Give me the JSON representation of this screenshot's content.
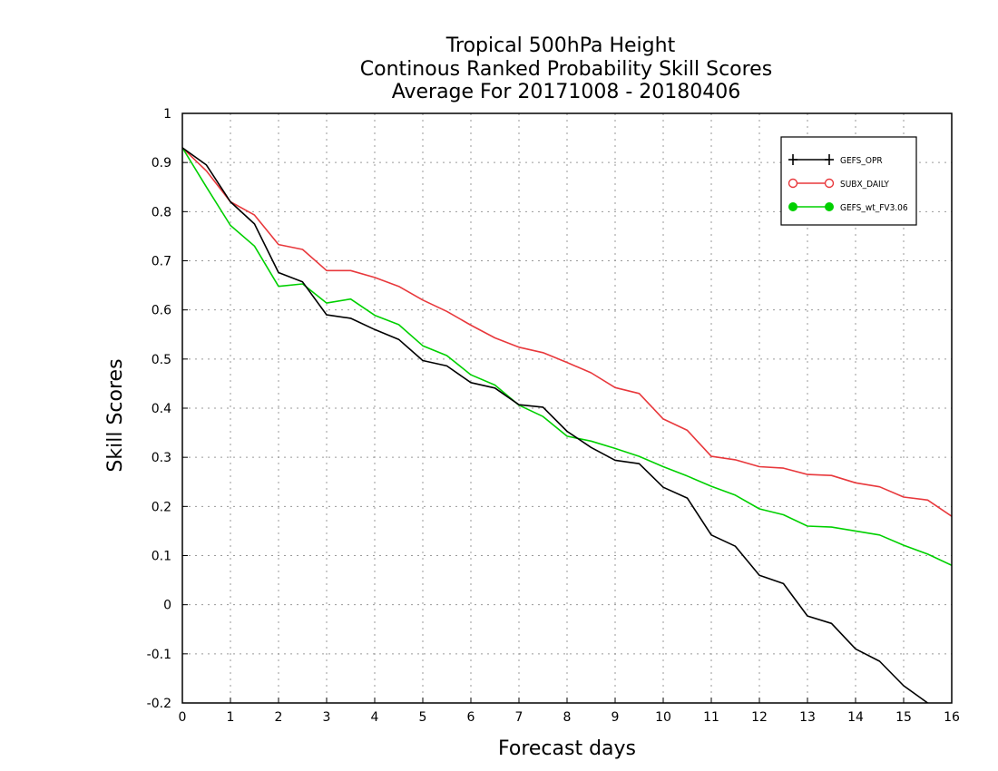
{
  "chart_data": {
    "type": "line",
    "title": [
      "Tropical 500hPa Height",
      "Continous Ranked Probability Skill Scores",
      "Average For 20171008 - 20180406"
    ],
    "xlabel": "Forecast days",
    "ylabel": "Skill Scores",
    "xlim": [
      0,
      16
    ],
    "ylim": [
      -0.2,
      1
    ],
    "xticks": [
      0,
      1,
      2,
      3,
      4,
      5,
      6,
      7,
      8,
      9,
      10,
      11,
      12,
      13,
      14,
      15,
      16
    ],
    "yticks": [
      -0.2,
      -0.1,
      0,
      0.1,
      0.2,
      0.3,
      0.4,
      0.5,
      0.6,
      0.7,
      0.8,
      0.9,
      1
    ],
    "grid": true,
    "legend_position": "top-right",
    "x": [
      0,
      0.5,
      1,
      1.5,
      2,
      2.5,
      3,
      3.5,
      4,
      4.5,
      5,
      5.5,
      6,
      6.5,
      7,
      7.5,
      8,
      8.5,
      9,
      9.5,
      10,
      10.5,
      11,
      11.5,
      12,
      12.5,
      13,
      13.5,
      14,
      14.5,
      15,
      15.5,
      16
    ],
    "series": [
      {
        "name": "GEFS_OPR",
        "color": "#000000",
        "marker": "plus",
        "values": [
          0.93,
          0.895,
          0.82,
          0.775,
          0.676,
          0.657,
          0.59,
          0.583,
          0.56,
          0.54,
          0.497,
          0.486,
          0.452,
          0.441,
          0.407,
          0.402,
          0.353,
          0.32,
          0.294,
          0.287,
          0.239,
          0.217,
          0.142,
          0.119,
          0.06,
          0.043,
          -0.023,
          -0.038,
          -0.09,
          -0.115,
          -0.165,
          -0.2,
          -0.215
        ]
      },
      {
        "name": "SUBX_DAILY",
        "color": "#e8383c",
        "marker": "circle-open",
        "values": [
          0.93,
          0.883,
          0.82,
          0.793,
          0.733,
          0.723,
          0.68,
          0.68,
          0.666,
          0.648,
          0.62,
          0.597,
          0.569,
          0.543,
          0.524,
          0.513,
          0.493,
          0.472,
          0.442,
          0.43,
          0.378,
          0.355,
          0.302,
          0.295,
          0.281,
          0.278,
          0.265,
          0.263,
          0.248,
          0.24,
          0.219,
          0.213,
          0.18
        ]
      },
      {
        "name": "GEFS_wt_FV3.06",
        "color": "#00d000",
        "marker": "circle-filled",
        "values": [
          0.93,
          0.85,
          0.772,
          0.73,
          0.648,
          0.653,
          0.614,
          0.622,
          0.589,
          0.57,
          0.527,
          0.507,
          0.468,
          0.447,
          0.406,
          0.383,
          0.343,
          0.333,
          0.318,
          0.302,
          0.281,
          0.262,
          0.241,
          0.223,
          0.195,
          0.183,
          0.16,
          0.158,
          0.15,
          0.142,
          0.121,
          0.103,
          0.08
        ]
      }
    ]
  }
}
